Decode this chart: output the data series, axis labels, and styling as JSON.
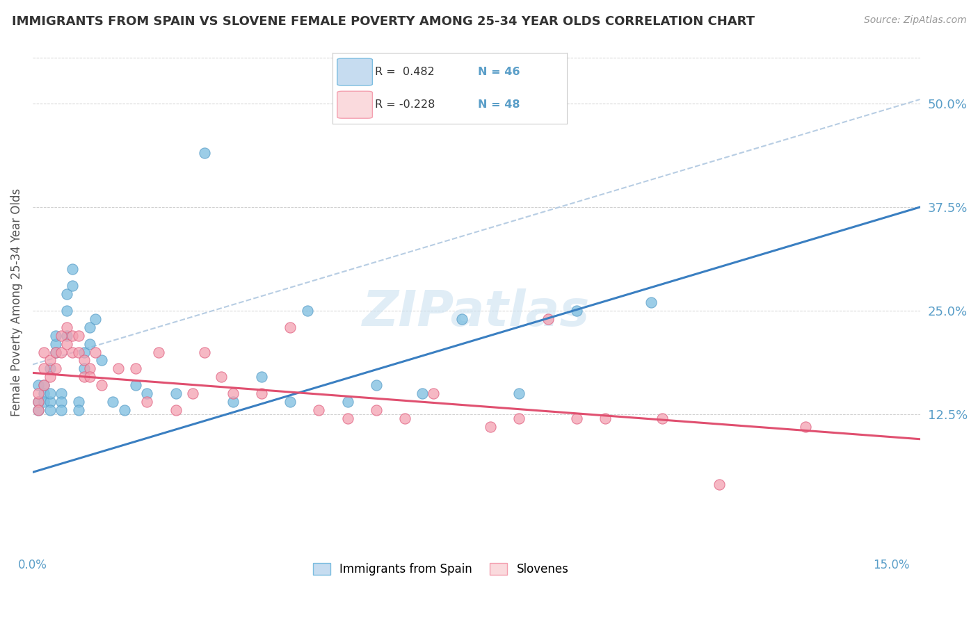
{
  "title": "IMMIGRANTS FROM SPAIN VS SLOVENE FEMALE POVERTY AMONG 25-34 YEAR OLDS CORRELATION CHART",
  "source_text": "Source: ZipAtlas.com",
  "ylabel": "Female Poverty Among 25-34 Year Olds",
  "xlim": [
    0.0,
    0.155
  ],
  "ylim": [
    -0.04,
    0.56
  ],
  "xtick_positions": [
    0.0,
    0.15
  ],
  "xticklabels": [
    "0.0%",
    "15.0%"
  ],
  "ytick_positions": [
    0.125,
    0.25,
    0.375,
    0.5
  ],
  "ytick_labels": [
    "12.5%",
    "25.0%",
    "37.5%",
    "50.0%"
  ],
  "blue_marker_color": "#7bbde0",
  "blue_edge_color": "#5a9ec8",
  "pink_marker_color": "#f4a0b0",
  "pink_edge_color": "#e06080",
  "trend_blue_color": "#3a7fc1",
  "trend_pink_color": "#e05070",
  "dashed_color": "#b0c8e0",
  "legend_R_blue": "0.482",
  "legend_N_blue": "46",
  "legend_R_pink": "-0.228",
  "legend_N_pink": "48",
  "legend_label_blue": "Immigrants from Spain",
  "legend_label_pink": "Slovenes",
  "blue_fill": "#c6dcf0",
  "blue_border": "#7bbde0",
  "pink_fill": "#fadadd",
  "pink_border": "#f4a0b0",
  "grid_color": "#d0d0d0",
  "bg_color": "#ffffff",
  "title_color": "#333333",
  "axis_label_color": "#5a9ec8",
  "watermark": "ZIPatlas",
  "blue_scatter_x": [
    0.001,
    0.001,
    0.001,
    0.002,
    0.002,
    0.002,
    0.003,
    0.003,
    0.003,
    0.003,
    0.004,
    0.004,
    0.004,
    0.005,
    0.005,
    0.005,
    0.006,
    0.006,
    0.006,
    0.007,
    0.007,
    0.008,
    0.008,
    0.009,
    0.009,
    0.01,
    0.01,
    0.011,
    0.012,
    0.014,
    0.016,
    0.018,
    0.02,
    0.025,
    0.03,
    0.035,
    0.04,
    0.045,
    0.048,
    0.055,
    0.06,
    0.068,
    0.075,
    0.085,
    0.095,
    0.108
  ],
  "blue_scatter_y": [
    0.14,
    0.16,
    0.13,
    0.15,
    0.14,
    0.16,
    0.14,
    0.15,
    0.13,
    0.18,
    0.21,
    0.2,
    0.22,
    0.15,
    0.14,
    0.13,
    0.27,
    0.25,
    0.22,
    0.3,
    0.28,
    0.14,
    0.13,
    0.2,
    0.18,
    0.23,
    0.21,
    0.24,
    0.19,
    0.14,
    0.13,
    0.16,
    0.15,
    0.15,
    0.44,
    0.14,
    0.17,
    0.14,
    0.25,
    0.14,
    0.16,
    0.15,
    0.24,
    0.15,
    0.25,
    0.26
  ],
  "pink_scatter_x": [
    0.001,
    0.001,
    0.001,
    0.002,
    0.002,
    0.002,
    0.003,
    0.003,
    0.004,
    0.004,
    0.005,
    0.005,
    0.006,
    0.006,
    0.007,
    0.007,
    0.008,
    0.008,
    0.009,
    0.009,
    0.01,
    0.01,
    0.011,
    0.012,
    0.015,
    0.018,
    0.02,
    0.022,
    0.025,
    0.028,
    0.03,
    0.033,
    0.035,
    0.04,
    0.045,
    0.05,
    0.055,
    0.06,
    0.065,
    0.07,
    0.08,
    0.085,
    0.09,
    0.095,
    0.1,
    0.11,
    0.12,
    0.135
  ],
  "pink_scatter_y": [
    0.14,
    0.15,
    0.13,
    0.2,
    0.18,
    0.16,
    0.19,
    0.17,
    0.2,
    0.18,
    0.22,
    0.2,
    0.23,
    0.21,
    0.22,
    0.2,
    0.2,
    0.22,
    0.19,
    0.17,
    0.18,
    0.17,
    0.2,
    0.16,
    0.18,
    0.18,
    0.14,
    0.2,
    0.13,
    0.15,
    0.2,
    0.17,
    0.15,
    0.15,
    0.23,
    0.13,
    0.12,
    0.13,
    0.12,
    0.15,
    0.11,
    0.12,
    0.24,
    0.12,
    0.12,
    0.12,
    0.04,
    0.11
  ],
  "blue_trend_x0": 0.0,
  "blue_trend_y0": 0.055,
  "blue_trend_x1": 0.155,
  "blue_trend_y1": 0.375,
  "pink_trend_x0": 0.0,
  "pink_trend_y0": 0.175,
  "pink_trend_x1": 0.155,
  "pink_trend_y1": 0.095,
  "dash_trend_x0": 0.0,
  "dash_trend_y0": 0.185,
  "dash_trend_x1": 0.155,
  "dash_trend_y1": 0.505
}
